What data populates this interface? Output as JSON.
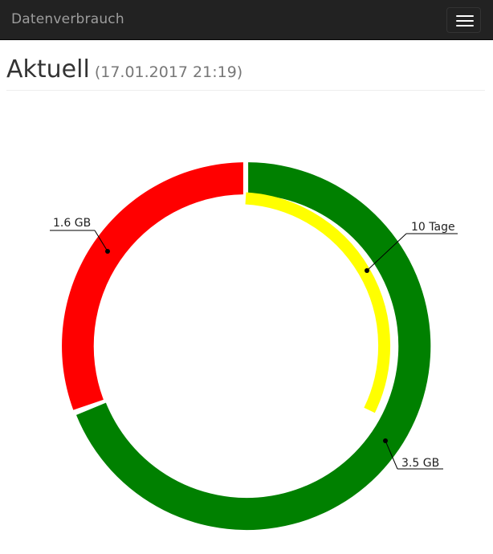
{
  "navbar": {
    "brand": "Datenverbrauch",
    "menu_icon": "hamburger-menu-icon"
  },
  "header": {
    "title": "Aktuell",
    "subtitle": "(17.01.2017 21:19)"
  },
  "colors": {
    "used": "#ff0000",
    "remaining": "#008000",
    "time": "#ffff00"
  },
  "chart_data": {
    "type": "donut",
    "outer_ring": [
      {
        "label": "1.6 GB",
        "value": 1.6,
        "color": "#ff0000"
      },
      {
        "label": "3.5 GB",
        "value": 3.5,
        "color": "#008000"
      }
    ],
    "inner_ring": [
      {
        "label": "10 Tage",
        "value": 10,
        "color": "#ffff00"
      }
    ]
  }
}
